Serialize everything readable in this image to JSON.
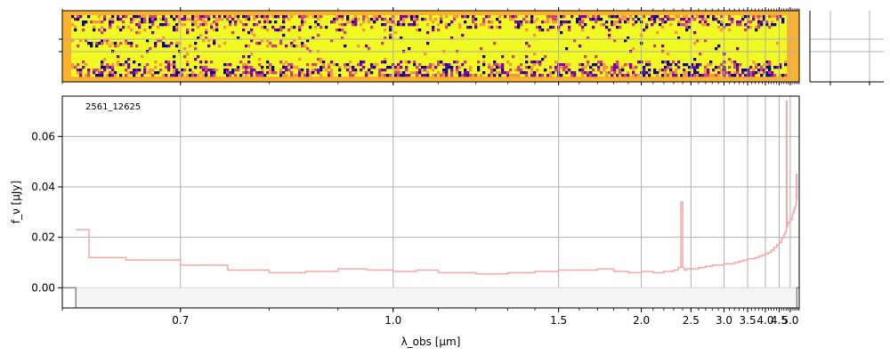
{
  "figure": {
    "object_id": "2561_12625",
    "ylabel": "f_ν [μJy]",
    "xlabel": "λ_obs [μm]"
  },
  "chart_data": [
    {
      "type": "heatmap",
      "description": "2D spectrum cutout",
      "colormap": [
        "#0d0887",
        "#7e03a8",
        "#cc4778",
        "#f89540",
        "#f0f921"
      ],
      "background_color": "#fbb32f",
      "grid": true
    },
    {
      "type": "heatmap",
      "description": "side panel (empty)",
      "grid": true
    },
    {
      "type": "line",
      "drawstyle": "steps",
      "xscale": "reciprocal",
      "xlim": [
        0.6,
        5.5
      ],
      "ylim": [
        -0.008,
        0.076
      ],
      "x_ticks": [
        "0.7",
        "1.0",
        "1.5",
        "2.0",
        "2.5",
        "3.0",
        "3.5",
        "4.0",
        "4.5",
        "5.0"
      ],
      "y_ticks": [
        "0.00",
        "0.02",
        "0.04",
        "0.06"
      ],
      "xlabel": "λ_obs [μm]",
      "ylabel": "f_ν [μJy]",
      "grid": true,
      "annotation": "2561_12625",
      "series": [
        {
          "color": "#f4a8a3",
          "x": [
            0.61,
            0.62,
            0.65,
            0.7,
            0.75,
            0.8,
            0.85,
            0.9,
            0.95,
            1.0,
            1.05,
            1.1,
            1.2,
            1.3,
            1.4,
            1.5,
            1.6,
            1.7,
            1.8,
            1.9,
            2.0,
            2.1,
            2.2,
            2.3,
            2.35,
            2.38,
            2.4,
            2.42,
            2.45,
            2.5,
            2.6,
            2.7,
            2.8,
            2.9,
            3.0,
            3.1,
            3.2,
            3.3,
            3.4,
            3.5,
            3.6,
            3.7,
            3.8,
            3.9,
            4.0,
            4.1,
            4.2,
            4.3,
            4.4,
            4.5,
            4.6,
            4.65,
            4.7,
            4.75,
            4.8,
            4.82,
            4.84,
            4.86,
            4.9,
            5.0,
            5.1,
            5.15,
            5.2,
            5.25,
            5.3,
            5.33,
            5.36
          ],
          "y": [
            0.023,
            0.012,
            0.011,
            0.009,
            0.007,
            0.006,
            0.0065,
            0.0075,
            0.007,
            0.0065,
            0.007,
            0.006,
            0.0055,
            0.006,
            0.0065,
            0.007,
            0.007,
            0.0075,
            0.0065,
            0.006,
            0.0065,
            0.006,
            0.0065,
            0.007,
            0.008,
            0.034,
            0.008,
            0.007,
            0.0075,
            0.0075,
            0.008,
            0.0085,
            0.009,
            0.009,
            0.0095,
            0.0095,
            0.01,
            0.0105,
            0.011,
            0.0115,
            0.0115,
            0.012,
            0.0125,
            0.013,
            0.0135,
            0.014,
            0.015,
            0.016,
            0.017,
            0.018,
            0.0195,
            0.02,
            0.021,
            0.022,
            0.023,
            0.074,
            0.024,
            0.025,
            0.026,
            0.027,
            0.029,
            0.03,
            0.031,
            0.032,
            0.033,
            0.045,
            0.035
          ]
        }
      ],
      "error_band": {
        "color": "#f4f4f4",
        "x": [
          0.61,
          5.36
        ],
        "y": [
          0.0,
          0.0
        ]
      }
    }
  ]
}
